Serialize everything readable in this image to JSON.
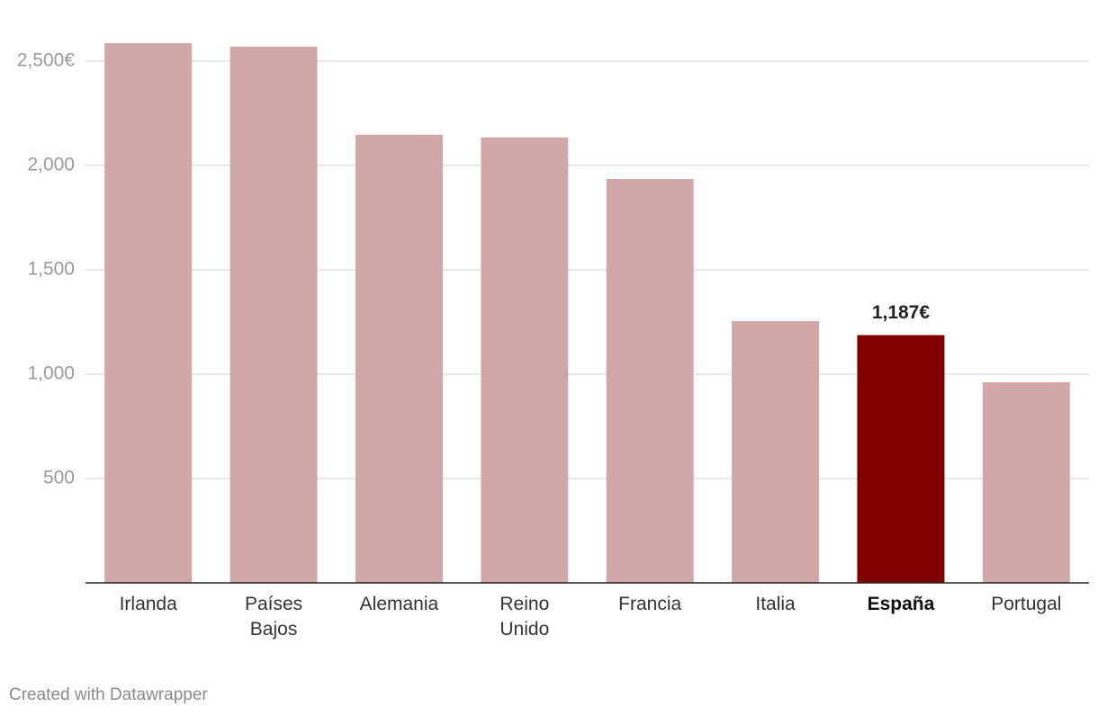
{
  "chart_data": {
    "type": "bar",
    "categories": [
      "Irlanda",
      "Países Bajos",
      "Alemania",
      "Reino Unido",
      "Francia",
      "Italia",
      "España",
      "Portugal"
    ],
    "values": [
      2586,
      2569,
      2147,
      2134,
      1935,
      1254,
      1187,
      961
    ],
    "value_labels": [
      null,
      null,
      null,
      null,
      null,
      null,
      "1,187€",
      null
    ],
    "colors": [
      "#d1a7a7",
      "#d1a7a7",
      "#d1a7a7",
      "#d1a7a7",
      "#d1a7a7",
      "#d1a7a7",
      "#800000",
      "#d1a7a7"
    ],
    "highlight": "España",
    "ylim": [
      0,
      2620
    ],
    "yticks": [
      500,
      {
        "value": 1000,
        "label": "1,000"
      },
      {
        "value": 1500,
        "label": "1,500"
      },
      {
        "value": 2000,
        "label": "2,000"
      },
      {
        "value": 2500,
        "label": "2,500€"
      }
    ],
    "grid": true,
    "footer": "Created with Datawrapper"
  }
}
